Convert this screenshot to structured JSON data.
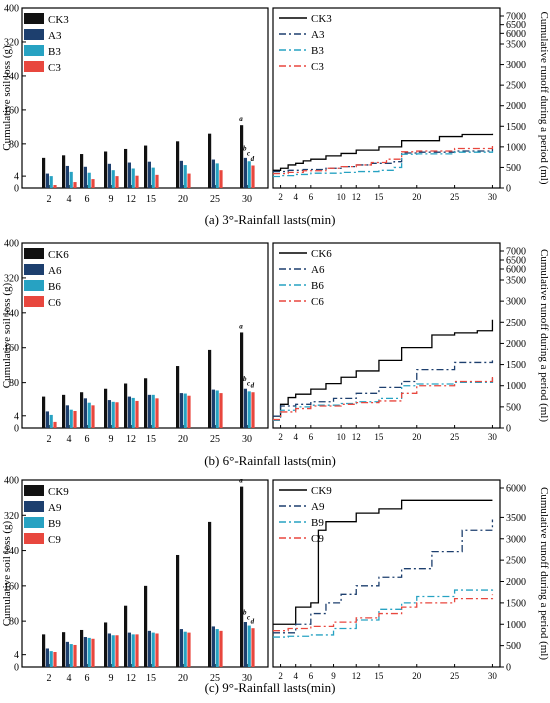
{
  "axis_labels": {
    "left_y": "Cumulative soil loss (g)",
    "right_y": "Cumulative runoff during a period (ml)"
  },
  "chart_data": [
    {
      "panel": "a",
      "type": "bar",
      "caption": "(a)  3°-Rainfall lasts(min)",
      "categories": [
        "2",
        "4",
        "6",
        "9",
        "12",
        "15",
        "20",
        "25",
        "30"
      ],
      "y_ticks": [
        0,
        4,
        80,
        160,
        240,
        320,
        400
      ],
      "ylim": [
        0,
        400
      ],
      "legend_position": "top-left",
      "series": [
        {
          "name": "CK3",
          "color": "#111111",
          "values": [
            47,
            53,
            56,
            62,
            68,
            76,
            86,
            104,
            124
          ]
        },
        {
          "name": "A3",
          "color": "#1d3f6e",
          "values": [
            10,
            28,
            26,
            33,
            36,
            38,
            40,
            43,
            47
          ]
        },
        {
          "name": "B3",
          "color": "#27a2c2",
          "values": [
            4,
            14,
            12,
            18,
            22,
            24,
            30,
            34,
            39
          ]
        },
        {
          "name": "C3",
          "color": "#e8473e",
          "values": [
            1,
            2,
            3,
            4,
            5,
            7,
            10,
            18,
            29
          ]
        }
      ],
      "annotations": [
        "a",
        "b",
        "c",
        "d"
      ]
    },
    {
      "panel": "a",
      "type": "line",
      "x_ticks": [
        2,
        4,
        6,
        10,
        12,
        15,
        20,
        25,
        30
      ],
      "xlim": [
        1,
        31
      ],
      "y_ticks": [
        0,
        500,
        1000,
        1500,
        2000,
        2500,
        3000,
        3500,
        6000,
        6500,
        7000
      ],
      "legend_position": "top-left",
      "series": [
        {
          "name": "CK3",
          "color": "#000000",
          "dash": "",
          "x": [
            1,
            2,
            3,
            4,
            5,
            6,
            8,
            10,
            12,
            15,
            18,
            23,
            26,
            30
          ],
          "y": [
            430,
            480,
            560,
            600,
            660,
            700,
            780,
            840,
            920,
            1000,
            1150,
            1250,
            1300,
            1320
          ]
        },
        {
          "name": "A3",
          "color": "#1d3f6e",
          "dash": "7 3 2 3",
          "x": [
            1,
            3,
            5,
            8,
            10,
            12,
            14,
            17,
            18,
            20,
            25,
            30
          ],
          "y": [
            400,
            430,
            450,
            480,
            520,
            560,
            600,
            640,
            850,
            870,
            900,
            950
          ]
        },
        {
          "name": "B3",
          "color": "#27a2c2",
          "dash": "7 3 2 3",
          "x": [
            1,
            2,
            4,
            6,
            10,
            12,
            15,
            17,
            18,
            20,
            25,
            30
          ],
          "y": [
            280,
            300,
            330,
            360,
            380,
            400,
            430,
            500,
            820,
            830,
            870,
            900
          ]
        },
        {
          "name": "C3",
          "color": "#e8473e",
          "dash": "7 3 2 3",
          "x": [
            1,
            3,
            5,
            8,
            10,
            12,
            14,
            16,
            18,
            20,
            25,
            30
          ],
          "y": [
            350,
            380,
            420,
            480,
            520,
            560,
            620,
            700,
            880,
            900,
            960,
            1020
          ]
        }
      ]
    },
    {
      "panel": "b",
      "type": "bar",
      "caption": "(b)  6°-Rainfall lasts(min)",
      "categories": [
        "2",
        "4",
        "6",
        "9",
        "12",
        "15",
        "20",
        "25",
        "30"
      ],
      "y_ticks": [
        0,
        4,
        80,
        160,
        240,
        320,
        400
      ],
      "ylim": [
        0,
        400
      ],
      "legend_position": "top-left",
      "series": [
        {
          "name": "CK6",
          "color": "#111111",
          "values": [
            48,
            52,
            58,
            66,
            78,
            90,
            118,
            155,
            195
          ]
        },
        {
          "name": "A6",
          "color": "#1d3f6e",
          "values": [
            14,
            28,
            44,
            40,
            48,
            52,
            56,
            64,
            66
          ]
        },
        {
          "name": "B6",
          "color": "#27a2c2",
          "values": [
            6,
            18,
            34,
            36,
            45,
            52,
            55,
            62,
            60
          ]
        },
        {
          "name": "C6",
          "color": "#e8473e",
          "values": [
            2,
            15,
            28,
            35,
            38,
            44,
            50,
            56,
            58
          ]
        }
      ],
      "annotations": [
        "a",
        "b",
        "c",
        "d"
      ]
    },
    {
      "panel": "b",
      "type": "line",
      "x_ticks": [
        2,
        4,
        6,
        10,
        12,
        15,
        20,
        25,
        30
      ],
      "xlim": [
        1,
        31
      ],
      "y_ticks": [
        0,
        500,
        1000,
        1500,
        2000,
        2500,
        3000,
        3500,
        6000,
        6500,
        7000
      ],
      "legend_position": "top-left",
      "series": [
        {
          "name": "CK6",
          "color": "#000000",
          "dash": "",
          "x": [
            1,
            2,
            3,
            4,
            6,
            8,
            10,
            12,
            15,
            18,
            22,
            25,
            28,
            30
          ],
          "y": [
            280,
            560,
            720,
            800,
            920,
            1050,
            1200,
            1350,
            1600,
            1900,
            2200,
            2250,
            2300,
            2560
          ]
        },
        {
          "name": "A6",
          "color": "#1d3f6e",
          "dash": "7 3 2 3",
          "x": [
            1,
            2,
            4,
            6,
            9,
            12,
            15,
            18,
            20,
            25,
            30
          ],
          "y": [
            280,
            520,
            560,
            620,
            700,
            820,
            960,
            1100,
            1380,
            1550,
            1600
          ]
        },
        {
          "name": "B6",
          "color": "#27a2c2",
          "dash": "7 3 2 3",
          "x": [
            1,
            2,
            4,
            6,
            10,
            12,
            15,
            18,
            20,
            25,
            30
          ],
          "y": [
            180,
            420,
            500,
            540,
            580,
            620,
            700,
            1000,
            1040,
            1080,
            1180
          ]
        },
        {
          "name": "C6",
          "color": "#e8473e",
          "dash": "7 3 2 3",
          "x": [
            1,
            2,
            4,
            6,
            10,
            12,
            15,
            18,
            20,
            25,
            30
          ],
          "y": [
            200,
            380,
            460,
            520,
            560,
            600,
            640,
            820,
            1000,
            1100,
            1250
          ]
        }
      ]
    },
    {
      "panel": "c",
      "type": "bar",
      "caption": "(c)  9°-Rainfall lasts(min)",
      "categories": [
        "2",
        "4",
        "6",
        "9",
        "12",
        "15",
        "20",
        "25",
        "30"
      ],
      "y_ticks": [
        0,
        4,
        80,
        160,
        240,
        320,
        400
      ],
      "ylim": [
        0,
        400
      ],
      "legend_position": "top-left",
      "series": [
        {
          "name": "CK9",
          "color": "#111111",
          "values": [
            50,
            55,
            60,
            77,
            115,
            160,
            230,
            305,
            385
          ]
        },
        {
          "name": "A9",
          "color": "#1d3f6e",
          "values": [
            18,
            33,
            44,
            52,
            54,
            58,
            62,
            68,
            78
          ]
        },
        {
          "name": "B9",
          "color": "#27a2c2",
          "values": [
            12,
            28,
            42,
            48,
            50,
            54,
            56,
            62,
            70
          ]
        },
        {
          "name": "C9",
          "color": "#e8473e",
          "values": [
            10,
            26,
            40,
            48,
            50,
            52,
            54,
            58,
            64
          ]
        }
      ],
      "annotations": [
        "a",
        "b",
        "c",
        "d"
      ]
    },
    {
      "panel": "c",
      "type": "line",
      "x_ticks": [
        2,
        4,
        6,
        9,
        12,
        15,
        20,
        25,
        30
      ],
      "xlim": [
        1,
        31
      ],
      "y_ticks": [
        0,
        500,
        1000,
        1500,
        2000,
        2500,
        3000,
        3500,
        6000
      ],
      "legend_position": "top-left",
      "series": [
        {
          "name": "CK9",
          "color": "#000000",
          "dash": "",
          "x": [
            1,
            3,
            4,
            6,
            7,
            8,
            12,
            15,
            18,
            30
          ],
          "y": [
            1000,
            1000,
            1400,
            1500,
            3200,
            3400,
            3600,
            3700,
            3900,
            3900
          ]
        },
        {
          "name": "A9",
          "color": "#1d3f6e",
          "dash": "7 3 2 3",
          "x": [
            1,
            4,
            6,
            8,
            10,
            12,
            15,
            18,
            22,
            26,
            30
          ],
          "y": [
            800,
            1000,
            1250,
            1500,
            1700,
            1900,
            2100,
            2300,
            2700,
            3200,
            3450
          ]
        },
        {
          "name": "B9",
          "color": "#27a2c2",
          "dash": "7 3 2 3",
          "x": [
            1,
            3,
            6,
            9,
            12,
            15,
            18,
            20,
            25,
            30
          ],
          "y": [
            700,
            720,
            750,
            900,
            1100,
            1350,
            1500,
            1650,
            1800,
            1850
          ]
        },
        {
          "name": "C9",
          "color": "#e8473e",
          "dash": "7 3 2 3",
          "x": [
            1,
            3,
            6,
            9,
            12,
            15,
            18,
            20,
            25,
            30
          ],
          "y": [
            850,
            900,
            950,
            1050,
            1150,
            1250,
            1400,
            1500,
            1600,
            1700
          ]
        }
      ]
    }
  ]
}
